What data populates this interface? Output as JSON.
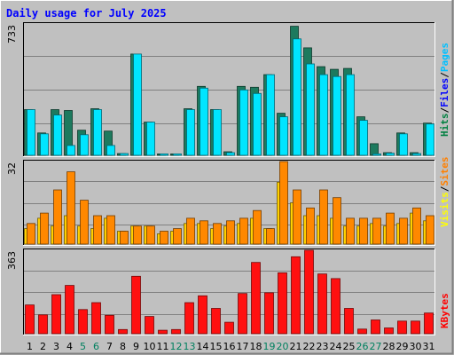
{
  "chart_data": {
    "type": "bar",
    "title": "Daily usage for July 2025",
    "categories": [
      "1",
      "2",
      "3",
      "4",
      "5",
      "6",
      "7",
      "8",
      "9",
      "10",
      "11",
      "12",
      "13",
      "14",
      "15",
      "16",
      "17",
      "18",
      "19",
      "20",
      "21",
      "22",
      "23",
      "24",
      "25",
      "26",
      "27",
      "28",
      "29",
      "30",
      "31"
    ],
    "weekend_days": [
      "5",
      "6",
      "12",
      "13",
      "19",
      "20",
      "26",
      "27"
    ],
    "panels": [
      {
        "id": "hits-files-pages",
        "ymax_label": "733",
        "ymax": 733,
        "legend": [
          {
            "text": "Hits",
            "color": "#008040"
          },
          {
            "text": "/",
            "color": "#000000"
          },
          {
            "text": "Files",
            "color": "#0000ff"
          },
          {
            "text": "/",
            "color": "#000000"
          },
          {
            "text": "Pages",
            "color": "#00c0ff"
          }
        ],
        "series": [
          {
            "name": "Hits",
            "color": "#1d7a5e",
            "values": [
              255,
              125,
              255,
              250,
              140,
              260,
              135,
              10,
              565,
              185,
              8,
              8,
              260,
              385,
              255,
              20,
              385,
              380,
              450,
              235,
              720,
              600,
              495,
              480,
              485,
              215,
              65,
              15,
              125,
              15,
              180
            ]
          },
          {
            "name": "Files",
            "color": "#00e5ff",
            "values": [
              255,
              120,
              225,
              55,
              115,
              255,
              55,
              10,
              565,
              185,
              8,
              8,
              255,
              375,
              255,
              15,
              365,
              345,
              450,
              215,
              650,
              510,
              450,
              440,
              450,
              195,
              8,
              12,
              120,
              10,
              175
            ]
          }
        ]
      },
      {
        "id": "sites-visits",
        "ymax_label": "32",
        "ymax": 32,
        "legend": [
          {
            "text": "Visits",
            "color": "#ffff00"
          },
          {
            "text": "/",
            "color": "#000000"
          },
          {
            "text": "Sites",
            "color": "#ff8000"
          }
        ],
        "series": [
          {
            "name": "Visits",
            "color": "#ffd000",
            "values": [
              6,
              10,
              7,
              11,
              7,
              6,
              10,
              5,
              7,
              7,
              4,
              5,
              8,
              8,
              6,
              7,
              8,
              10,
              6,
              24,
              16,
              11,
              11,
              10,
              7,
              7,
              8,
              7,
              8,
              12,
              9
            ]
          },
          {
            "name": "Sites",
            "color": "#ff8800",
            "values": [
              8,
              12,
              21,
              28,
              17,
              11,
              11,
              5,
              7,
              7,
              5,
              6,
              10,
              9,
              8,
              9,
              10,
              13,
              6,
              32,
              21,
              14,
              21,
              18,
              10,
              10,
              10,
              12,
              10,
              14,
              11
            ]
          }
        ]
      },
      {
        "id": "kbytes",
        "ymax_label": "363",
        "ymax": 363,
        "legend": [
          {
            "text": "KBytes",
            "color": "#ff0000"
          }
        ],
        "series": [
          {
            "name": "KBytes",
            "color": "#ff1010",
            "values": [
              125,
              82,
              170,
              210,
              105,
              135,
              80,
              18,
              250,
              75,
              15,
              18,
              135,
              165,
              110,
              50,
              175,
              310,
              178,
              265,
              335,
              363,
              260,
              240,
              110,
              20,
              60,
              25,
              55,
              55,
              90
            ]
          }
        ]
      }
    ]
  }
}
